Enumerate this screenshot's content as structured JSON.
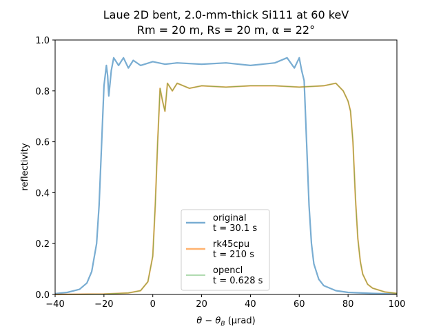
{
  "chart_data": {
    "type": "line",
    "title_line1": "Laue 2D bent, 2.0-mm-thick Si111 at 60 keV",
    "title_line2": "Rm = 20 m, Rs = 20 m, α = 22°",
    "xlabel_main": "θ − θ",
    "xlabel_sub": "B",
    "xlabel_unit": " (µrad)",
    "ylabel": "reflectivity",
    "xlim": [
      -40,
      100
    ],
    "ylim": [
      0.0,
      1.0
    ],
    "xticks": [
      "−40",
      "−20",
      "0",
      "20",
      "40",
      "60",
      "80",
      "100"
    ],
    "xtick_values": [
      -40,
      -20,
      0,
      20,
      40,
      60,
      80,
      100
    ],
    "yticks": [
      "0.0",
      "0.2",
      "0.4",
      "0.6",
      "0.8",
      "1.0"
    ],
    "ytick_values": [
      0.0,
      0.2,
      0.4,
      0.6,
      0.8,
      1.0
    ],
    "legend_position": "lower center",
    "series": [
      {
        "name": "original",
        "label_line2": "t = 30.1 s",
        "color": "#1f77b4",
        "opacity": 0.6,
        "line_width": 2.2,
        "x": [
          -40,
          -35,
          -30,
          -27,
          -25,
          -23,
          -22,
          -21,
          -20,
          -19,
          -18.5,
          -18,
          -17,
          -16,
          -14,
          -12,
          -10,
          -8,
          -5,
          0,
          5,
          10,
          20,
          30,
          40,
          50,
          55,
          58,
          60,
          61,
          62,
          63,
          64,
          65,
          66,
          68,
          70,
          75,
          80,
          90,
          100
        ],
        "y": [
          0.003,
          0.008,
          0.02,
          0.045,
          0.09,
          0.2,
          0.35,
          0.58,
          0.82,
          0.9,
          0.86,
          0.78,
          0.88,
          0.93,
          0.9,
          0.93,
          0.89,
          0.92,
          0.9,
          0.915,
          0.905,
          0.91,
          0.905,
          0.91,
          0.9,
          0.91,
          0.93,
          0.89,
          0.93,
          0.88,
          0.84,
          0.6,
          0.35,
          0.2,
          0.12,
          0.06,
          0.035,
          0.015,
          0.008,
          0.004,
          0.002
        ]
      },
      {
        "name": "rk45cpu",
        "label_line2": "t = 210 s",
        "color": "#ff7f0e",
        "opacity": 0.6,
        "line_width": 2.2,
        "x": [
          -40,
          -20,
          -10,
          -5,
          -2,
          0,
          1,
          2,
          3,
          4,
          5,
          6,
          8,
          10,
          15,
          20,
          30,
          40,
          50,
          60,
          70,
          75,
          78,
          80,
          81,
          82,
          83,
          84,
          85,
          86,
          88,
          90,
          95,
          100
        ],
        "y": [
          0.0,
          0.002,
          0.006,
          0.015,
          0.05,
          0.15,
          0.35,
          0.6,
          0.81,
          0.76,
          0.72,
          0.83,
          0.8,
          0.83,
          0.81,
          0.82,
          0.815,
          0.82,
          0.82,
          0.815,
          0.82,
          0.83,
          0.8,
          0.76,
          0.72,
          0.6,
          0.38,
          0.22,
          0.13,
          0.08,
          0.04,
          0.025,
          0.01,
          0.004
        ]
      },
      {
        "name": "opencl",
        "label_line2": "t = 0.628 s",
        "color": "#2ca02c",
        "opacity": 0.5,
        "line_width": 1.2,
        "x": [
          -40,
          -20,
          -10,
          -5,
          -2,
          0,
          1,
          2,
          3,
          4,
          5,
          6,
          8,
          10,
          15,
          20,
          30,
          40,
          50,
          60,
          70,
          75,
          78,
          80,
          81,
          82,
          83,
          84,
          85,
          86,
          88,
          90,
          95,
          100
        ],
        "y": [
          0.0,
          0.002,
          0.006,
          0.015,
          0.05,
          0.15,
          0.35,
          0.6,
          0.81,
          0.76,
          0.72,
          0.83,
          0.8,
          0.83,
          0.81,
          0.82,
          0.815,
          0.82,
          0.82,
          0.815,
          0.82,
          0.83,
          0.8,
          0.76,
          0.72,
          0.6,
          0.38,
          0.22,
          0.13,
          0.08,
          0.04,
          0.025,
          0.01,
          0.004
        ]
      }
    ]
  }
}
